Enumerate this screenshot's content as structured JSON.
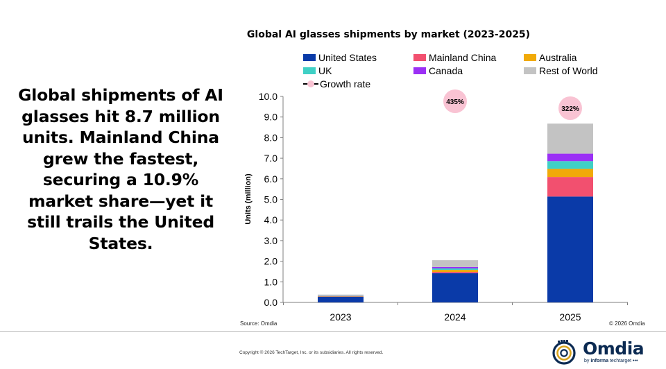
{
  "headline": "Global shipments of AI glasses hit 8.7 million units. Mainland China grew the fastest, securing a 10.9% market share—yet it still trails the United States.",
  "chart_data": {
    "type": "bar",
    "stacked": true,
    "title": "Global AI glasses shipments by market (2023-2025)",
    "ylabel": "Units (million)",
    "xlabel": "",
    "ylim": [
      0,
      10
    ],
    "yticks": [
      "0.0",
      "1.0",
      "2.0",
      "3.0",
      "4.0",
      "5.0",
      "6.0",
      "7.0",
      "8.0",
      "9.0",
      "10.0"
    ],
    "categories": [
      "2023",
      "2024",
      "2025"
    ],
    "series": [
      {
        "name": "United States",
        "color": "#0a3aa8",
        "values": [
          0.28,
          1.42,
          5.14
        ]
      },
      {
        "name": "Mainland China",
        "color": "#f2506f",
        "values": [
          0.01,
          0.06,
          0.95
        ]
      },
      {
        "name": "Australia",
        "color": "#f1aa08",
        "values": [
          0.02,
          0.1,
          0.39
        ]
      },
      {
        "name": "UK",
        "color": "#3fd0c5",
        "values": [
          0.01,
          0.07,
          0.38
        ]
      },
      {
        "name": "Canada",
        "color": "#9b30f5",
        "values": [
          0.01,
          0.07,
          0.36
        ]
      },
      {
        "name": "Rest of World",
        "color": "#c3c3c3",
        "values": [
          0.05,
          0.33,
          1.46
        ]
      }
    ],
    "growth_rate": {
      "name": "Growth rate",
      "color": "#f9c3d3",
      "labels": [
        "",
        "435%",
        "322%"
      ]
    },
    "legend": "top",
    "grid": false
  },
  "source": "Source: Omdia",
  "chart_copyright": "© 2026 Omdia",
  "footer_copyright": "Copyright © 2026 TechTarget, Inc. or its subsidiaries. All rights reserved.",
  "logo": {
    "name": "Omdia",
    "sub_prefix": "by ",
    "sub_brand": "informa",
    "sub_suffix": " techtarget"
  }
}
